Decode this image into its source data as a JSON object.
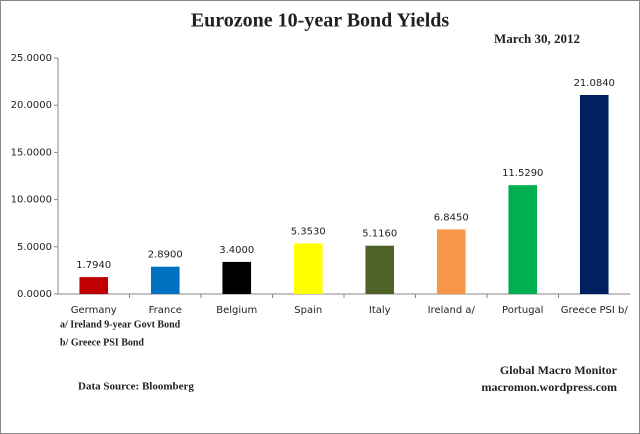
{
  "chart_data": {
    "type": "bar",
    "title": "Eurozone 10-year Bond Yields",
    "subtitle": "March 30, 2012",
    "categories": [
      "Germany",
      "France",
      "Belgium",
      "Spain",
      "Italy",
      "Ireland  a/",
      "Portugal",
      "Greece PSI b/"
    ],
    "values": [
      1.794,
      2.89,
      3.4,
      5.353,
      5.116,
      6.845,
      11.529,
      21.084
    ],
    "value_labels": [
      "1.7940",
      "2.8900",
      "3.4000",
      "5.3530",
      "5.1160",
      "6.8450",
      "11.5290",
      "21.0840"
    ],
    "colors": [
      "#c00000",
      "#0070c0",
      "#000000",
      "#ffff00",
      "#4f6228",
      "#f79646",
      "#00b050",
      "#002060"
    ],
    "ylim": [
      0,
      25
    ],
    "yticks": [
      {
        "value": 0,
        "label": "0.0000"
      },
      {
        "value": 5,
        "label": "5.0000"
      },
      {
        "value": 10,
        "label": "10.0000"
      },
      {
        "value": 15,
        "label": "15.0000"
      },
      {
        "value": 20,
        "label": "20.0000"
      },
      {
        "value": 25,
        "label": "25.0000"
      }
    ],
    "grid": false,
    "notes": [
      "a/  Ireland 9-year Govt Bond",
      "b/  Greece PSI Bond"
    ],
    "source": "Data Source:  Bloomberg",
    "credit": [
      "Global Macro Monitor",
      "macromon.wordpress.com"
    ]
  }
}
